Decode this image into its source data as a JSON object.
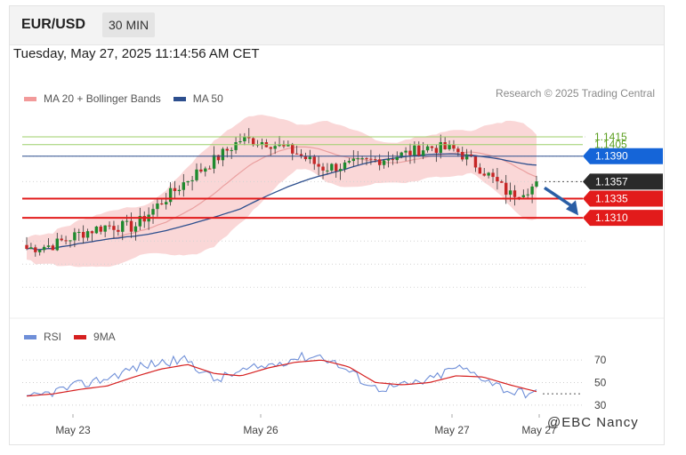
{
  "header": {
    "symbol": "EUR/USD",
    "interval": "30 MIN"
  },
  "timestamp": "Tuesday, May 27, 2025 11:14:56 AM CET",
  "credit": "Research © 2025 Trading Central",
  "watermark": "@EBC Nancy",
  "legend_price": [
    {
      "label": "MA 20 + Bollinger Bands",
      "color": "#f29a9a"
    },
    {
      "label": "MA 50",
      "color": "#2d4f8e"
    }
  ],
  "legend_rsi": [
    {
      "label": "RSI",
      "color": "#6f8fd8"
    },
    {
      "label": "9MA",
      "color": "#d62020"
    }
  ],
  "colors": {
    "up": "#1f8a2e",
    "down": "#c62626",
    "support": "#e21b1b",
    "ma50": "#2d4f8e",
    "resistance_green": "#9ccf6a",
    "band": "#f8c9c9",
    "ma20": "#eaa0a0",
    "current": "#2a2a2a",
    "blue_level": "#1565d8",
    "arrow": "#2a5ea5",
    "rsi": "#6f8fd8",
    "rsi_ma": "#d62020"
  },
  "chart_data": [
    {
      "type": "candlestick",
      "title": "EUR/USD 30 MIN",
      "x_labels": [
        "May 23",
        "May 26",
        "May 27",
        "May 27"
      ],
      "ylim": [
        1.118,
        1.1445
      ],
      "levels": [
        {
          "value": 1.1415,
          "label": "1.1415",
          "style": "green-line"
        },
        {
          "value": 1.1405,
          "label": "1.1405",
          "style": "green-line"
        },
        {
          "value": 1.139,
          "label": "1.1390",
          "style": "blue-tag"
        },
        {
          "value": 1.1357,
          "label": "1.1357",
          "style": "current-tag"
        },
        {
          "value": 1.1335,
          "label": "1.1335",
          "style": "red-tag"
        },
        {
          "value": 1.131,
          "label": "1.1310",
          "style": "red-tag"
        }
      ],
      "anchors": [
        1.127,
        1.1275,
        1.129,
        1.13,
        1.1298,
        1.133,
        1.136,
        1.1385,
        1.1412,
        1.1408,
        1.1395,
        1.1375,
        1.1378,
        1.1385,
        1.1392,
        1.1402,
        1.1398,
        1.1372,
        1.134,
        1.1352
      ],
      "arrow": {
        "from": 1.1349,
        "to": 1.1312,
        "direction": "down"
      }
    },
    {
      "type": "line",
      "title": "RSI",
      "series": [
        {
          "name": "RSI",
          "values": [
            35,
            42,
            48,
            54,
            63,
            68,
            70,
            52,
            60,
            65,
            72,
            74,
            60,
            45,
            47,
            52,
            64,
            55,
            42,
            40
          ]
        },
        {
          "name": "9MA",
          "values": [
            38,
            40,
            44,
            47,
            55,
            62,
            66,
            58,
            56,
            63,
            68,
            70,
            64,
            50,
            48,
            50,
            56,
            55,
            48,
            42
          ]
        }
      ],
      "ylim": [
        22,
        78
      ],
      "yticks": [
        70,
        50,
        30
      ]
    }
  ]
}
